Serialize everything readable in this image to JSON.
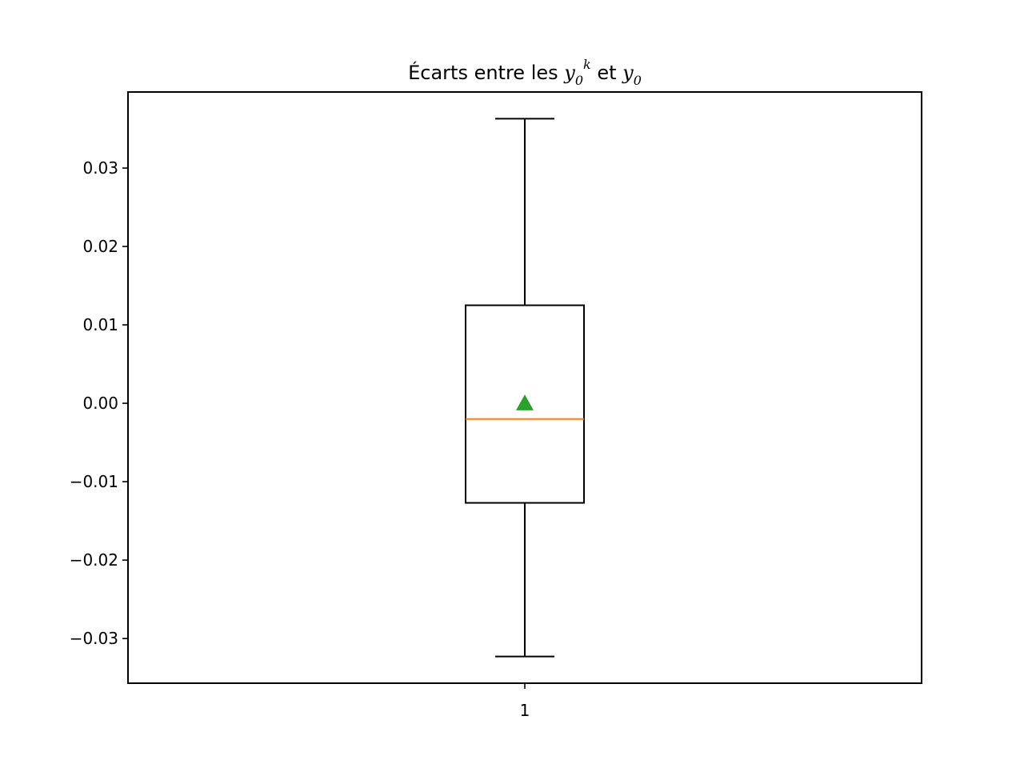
{
  "chart_data": {
    "type": "box",
    "title": {
      "prefix": "Écarts entre les ",
      "var1": "y",
      "var1_sub": "0",
      "var1_sup": "k",
      "middle": " et ",
      "var2": "y",
      "var2_sub": "0"
    },
    "xlabel": "",
    "ylabel": "",
    "ylim": [
      -0.0357,
      0.0397
    ],
    "yticks": [
      -0.03,
      -0.02,
      -0.01,
      0.0,
      0.01,
      0.02,
      0.03
    ],
    "ytick_labels": [
      "−0.03",
      "−0.02",
      "−0.01",
      "0.00",
      "0.01",
      "0.02",
      "0.03"
    ],
    "categories": [
      "1"
    ],
    "boxes": [
      {
        "label": "1",
        "whisker_low": -0.0323,
        "q1": -0.0127,
        "median": -0.002,
        "q3": 0.0125,
        "whisker_high": 0.0363,
        "mean": 0.0
      }
    ],
    "grid": false,
    "colors": {
      "box": "#000000",
      "median": "#ff7f0e",
      "mean": "#2ca02c"
    }
  }
}
